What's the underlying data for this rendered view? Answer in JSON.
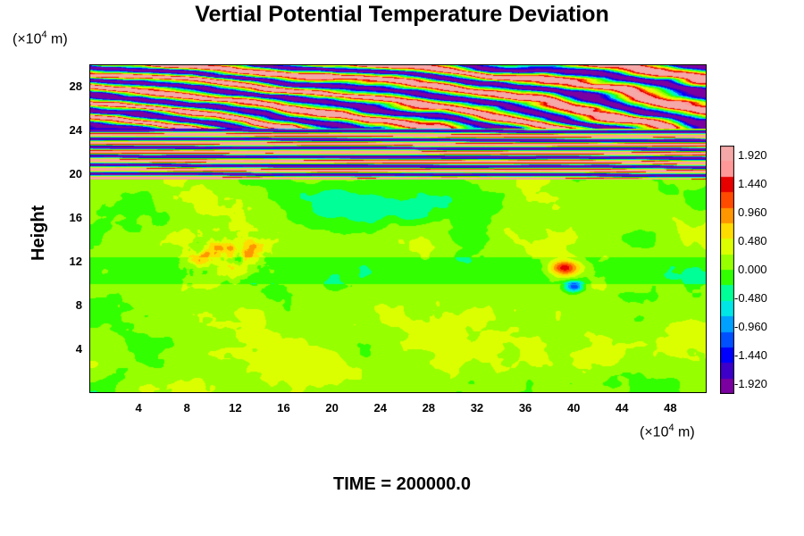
{
  "chart_data": {
    "type": "heatmap",
    "title": "Vertial Potential Temperature Deviation",
    "ylabel": "Height",
    "y_unit_prefix": "(×10",
    "y_unit_exp": "4",
    "y_unit_suffix": " m)",
    "x_unit_prefix": "(×10",
    "x_unit_exp": "4",
    "x_unit_suffix": " m)",
    "x_ticks": [
      "4",
      "8",
      "12",
      "16",
      "20",
      "24",
      "28",
      "32",
      "36",
      "40",
      "44",
      "48"
    ],
    "y_ticks": [
      "4",
      "8",
      "12",
      "16",
      "20",
      "24",
      "28"
    ],
    "xlim": [
      0,
      51
    ],
    "ylim": [
      0,
      30
    ],
    "colorbar_ticks": [
      "1.920",
      "1.440",
      "0.960",
      "0.480",
      "0.000",
      "-0.480",
      "-0.960",
      "-1.440",
      "-1.920"
    ],
    "colorbar_range": [
      -2.08,
      2.08
    ],
    "time_label": "TIME = 200000.0"
  },
  "colors": {
    "colormap": [
      "#7b00a0",
      "#3c00c8",
      "#0000ff",
      "#0050ff",
      "#00a0ff",
      "#00e6e6",
      "#00ff96",
      "#32ff00",
      "#96ff00",
      "#dcff00",
      "#ffdc00",
      "#ff9600",
      "#ff4b00",
      "#e60000",
      "#ff9999",
      "#f5a8a8"
    ]
  }
}
